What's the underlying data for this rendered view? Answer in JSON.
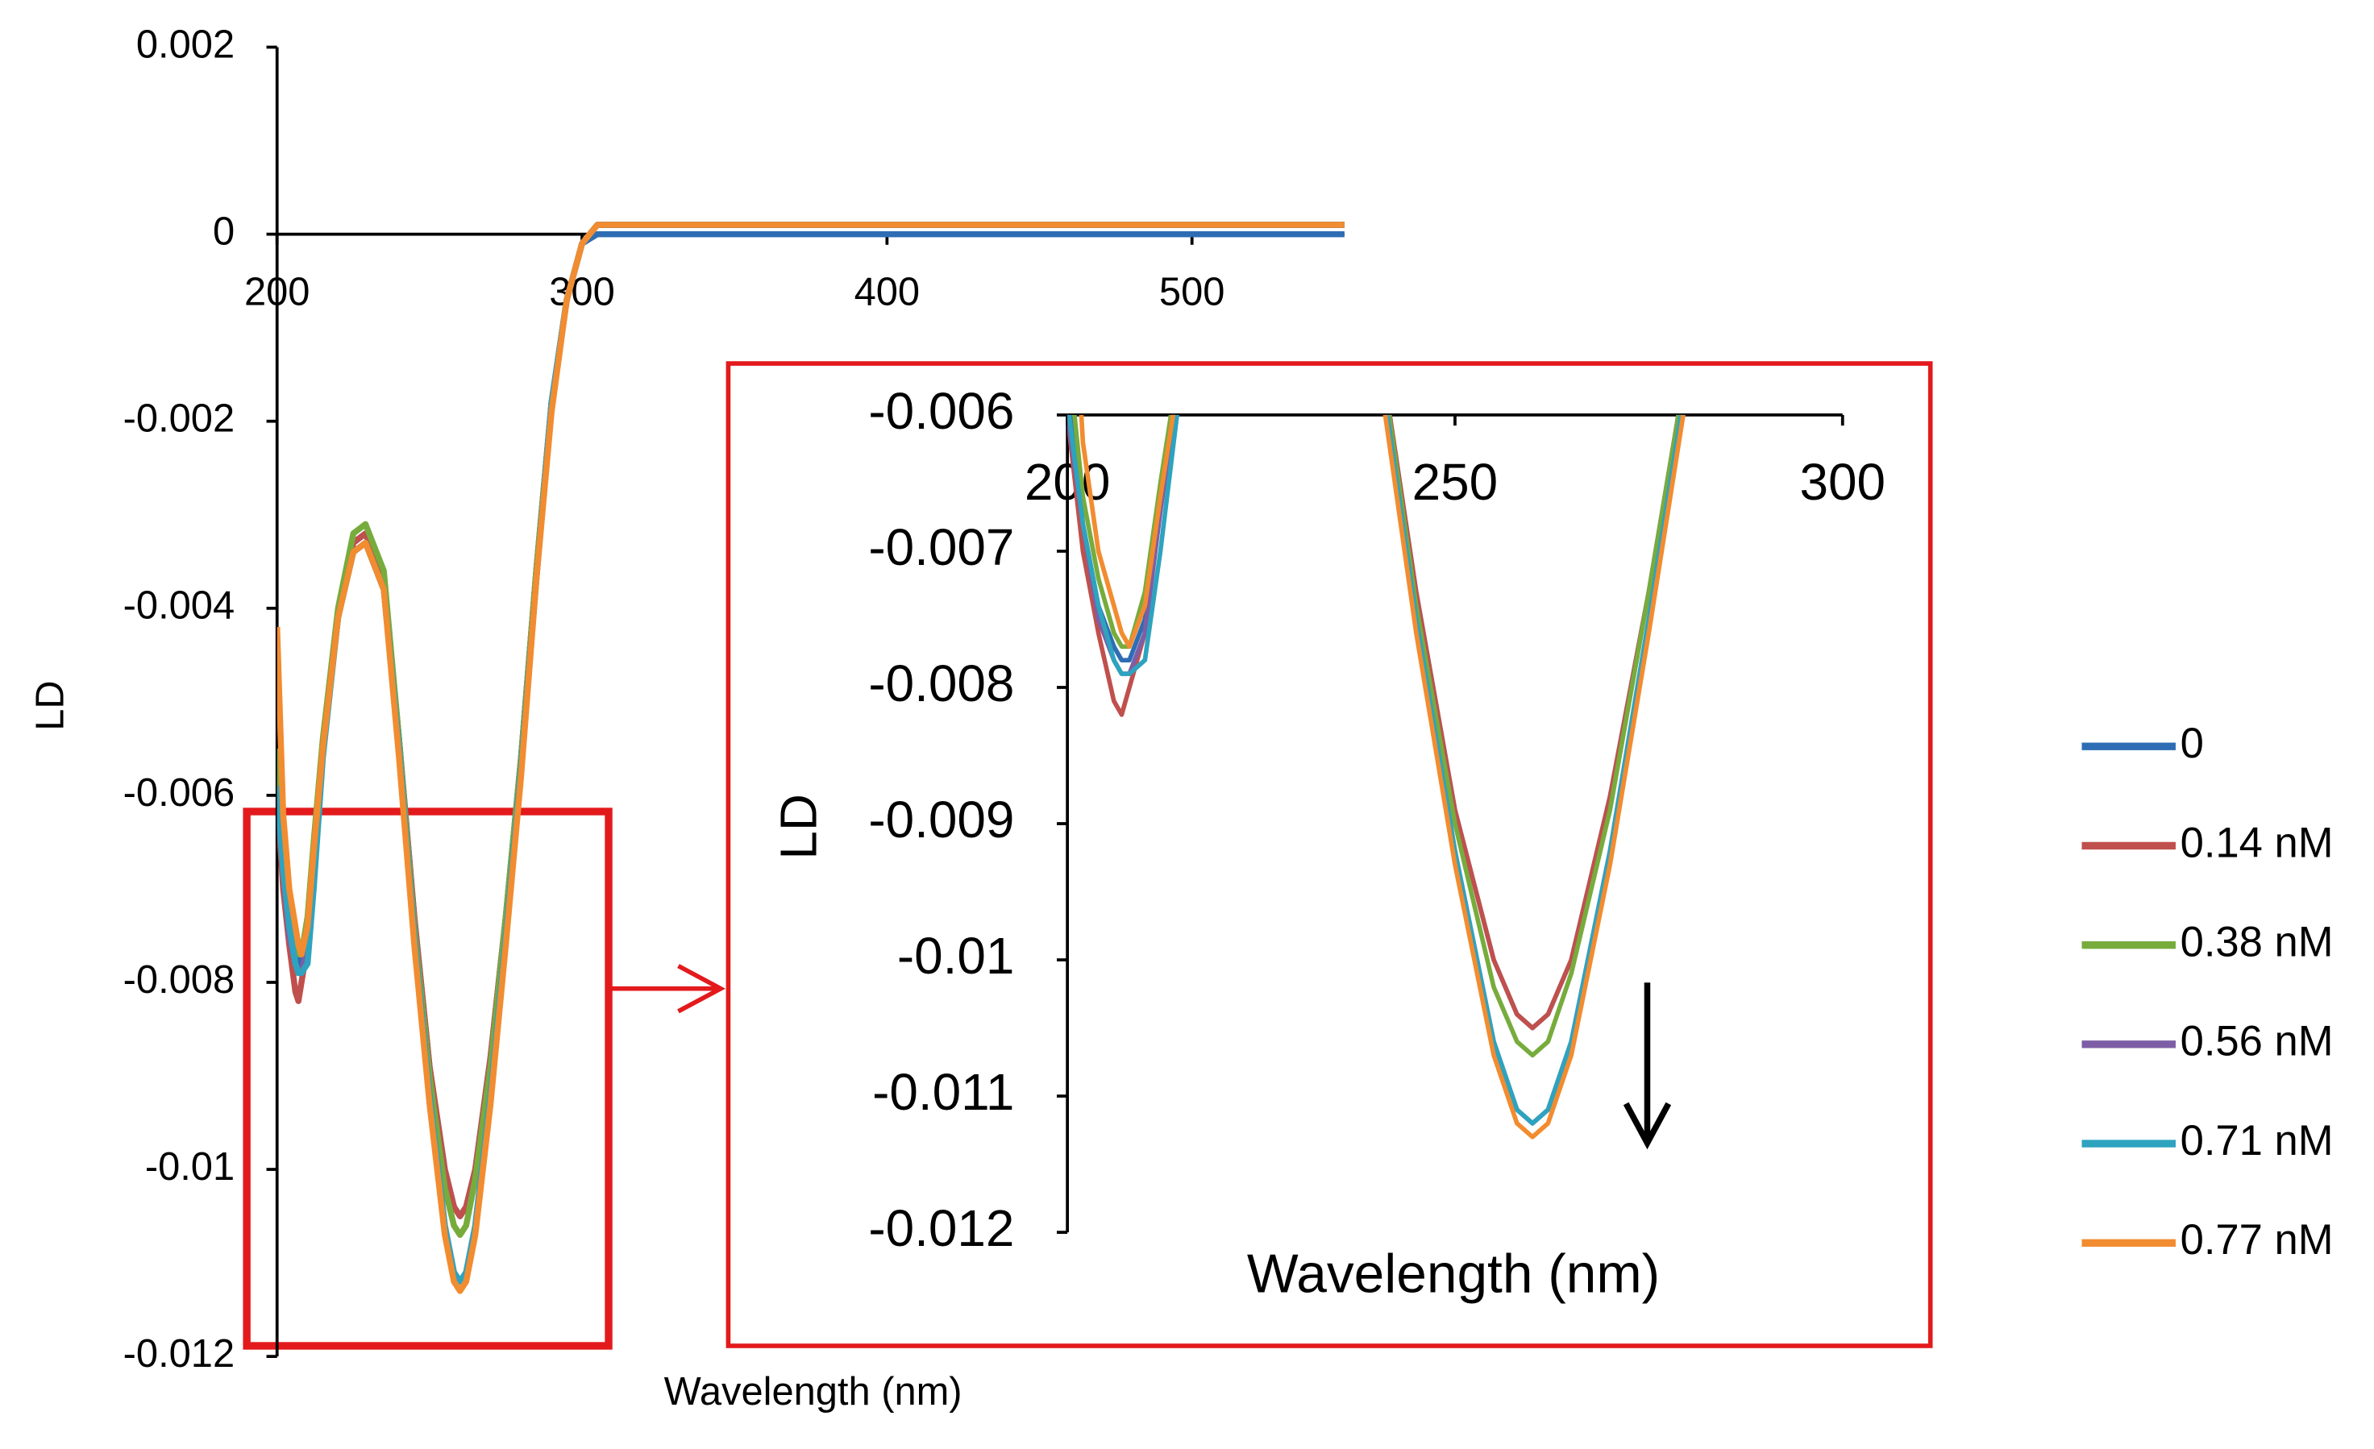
{
  "chart_data": [
    {
      "type": "line",
      "xlabel": "Wavelength  (nm)",
      "ylabel": "LD",
      "x": [
        200,
        202,
        204,
        206,
        207,
        208,
        210,
        212,
        215,
        220,
        225,
        229,
        235,
        240,
        245,
        250,
        255,
        258,
        260,
        262,
        265,
        270,
        275,
        280,
        285,
        290,
        295,
        300,
        305,
        310,
        350,
        400,
        450,
        500,
        550
      ],
      "xlim": [
        200,
        550
      ],
      "ylim": [
        -0.012,
        0.002
      ],
      "xticks": [
        200,
        300,
        400,
        500
      ],
      "yticks": [
        0.002,
        0,
        -0.002,
        -0.004,
        -0.006,
        -0.008,
        -0.01,
        -0.012
      ],
      "legend": "right",
      "series": [
        {
          "name": "0",
          "color": "#2e6db4",
          "values": [
            -0.0058,
            -0.0068,
            -0.0074,
            -0.0077,
            -0.0078,
            -0.0078,
            -0.0075,
            -0.0067,
            -0.0055,
            -0.0041,
            -0.0033,
            -0.0032,
            -0.0037,
            -0.0054,
            -0.0073,
            -0.0089,
            -0.01,
            -0.0104,
            -0.0105,
            -0.0104,
            -0.01,
            -0.0088,
            -0.0073,
            -0.0056,
            -0.0036,
            -0.0018,
            -0.0007,
            -0.0001,
            0.0,
            0.0,
            0.0,
            0.0,
            0.0,
            0.0,
            0.0
          ]
        },
        {
          "name": "0.14 nM",
          "color": "#c0504d",
          "values": [
            -0.006,
            -0.007,
            -0.0076,
            -0.0081,
            -0.0082,
            -0.008,
            -0.0076,
            -0.0067,
            -0.0055,
            -0.0041,
            -0.0033,
            -0.0032,
            -0.0037,
            -0.0054,
            -0.0073,
            -0.0089,
            -0.01,
            -0.0104,
            -0.0105,
            -0.0104,
            -0.01,
            -0.0088,
            -0.0073,
            -0.0056,
            -0.0036,
            -0.0018,
            -0.0007,
            -0.0001,
            0.0001,
            0.0001,
            0.0001,
            0.0001,
            0.0001,
            0.0001,
            0.0001
          ]
        },
        {
          "name": "0.38 nM",
          "color": "#77ac3d",
          "values": [
            -0.0055,
            -0.0066,
            -0.0072,
            -0.0076,
            -0.0077,
            -0.0077,
            -0.0073,
            -0.0065,
            -0.0054,
            -0.004,
            -0.0032,
            -0.0031,
            -0.0036,
            -0.0054,
            -0.0074,
            -0.009,
            -0.0102,
            -0.0106,
            -0.0107,
            -0.0106,
            -0.0101,
            -0.0089,
            -0.0073,
            -0.0056,
            -0.0036,
            -0.0018,
            -0.0007,
            -0.0001,
            0.0001,
            0.0001,
            0.0001,
            0.0001,
            0.0001,
            0.0001,
            0.0001
          ]
        },
        {
          "name": "0.56 nM",
          "color": "#7d5ea6",
          "values": [
            -0.006,
            -0.0068,
            -0.0075,
            -0.0078,
            -0.0079,
            -0.0079,
            -0.0076,
            -0.0067,
            -0.0055,
            -0.0041,
            -0.0034,
            -0.0033,
            -0.0038,
            -0.0055,
            -0.0075,
            -0.0092,
            -0.0106,
            -0.0111,
            -0.0112,
            -0.0111,
            -0.0106,
            -0.0092,
            -0.0075,
            -0.0057,
            -0.0037,
            -0.0018,
            -0.0007,
            -0.0001,
            0.0001,
            0.0001,
            0.0001,
            0.0001,
            0.0001,
            0.0001,
            0.0001
          ]
        },
        {
          "name": "0.71 nM",
          "color": "#2ea3bf",
          "values": [
            -0.0059,
            -0.0068,
            -0.0074,
            -0.0078,
            -0.0079,
            -0.0079,
            -0.0078,
            -0.007,
            -0.0056,
            -0.0041,
            -0.0034,
            -0.0033,
            -0.0038,
            -0.0055,
            -0.0075,
            -0.0092,
            -0.0106,
            -0.0111,
            -0.0112,
            -0.0111,
            -0.0106,
            -0.0092,
            -0.0075,
            -0.0057,
            -0.0037,
            -0.0018,
            -0.0007,
            -0.0001,
            0.0001,
            0.0001,
            0.0001,
            0.0001,
            0.0001,
            0.0001,
            0.0001
          ]
        },
        {
          "name": "0.77 nM",
          "color": "#f28c30",
          "values": [
            -0.0042,
            -0.0062,
            -0.007,
            -0.0074,
            -0.0076,
            -0.0077,
            -0.0074,
            -0.0066,
            -0.0055,
            -0.0041,
            -0.0034,
            -0.0033,
            -0.0038,
            -0.0056,
            -0.0076,
            -0.0093,
            -0.0107,
            -0.0112,
            -0.0113,
            -0.0112,
            -0.0107,
            -0.0093,
            -0.0076,
            -0.0058,
            -0.0037,
            -0.0019,
            -0.0007,
            -0.0001,
            0.0001,
            0.0001,
            0.0001,
            0.0001,
            0.0001,
            0.0001,
            0.0001
          ]
        }
      ]
    },
    {
      "type": "line",
      "xlabel": "Wavelength (nm)",
      "ylabel": "LD",
      "xlim": [
        200,
        300
      ],
      "ylim": [
        -0.012,
        -0.006
      ],
      "xticks": [
        200,
        250,
        300
      ],
      "yticks": [
        -0.006,
        -0.007,
        -0.008,
        -0.009,
        -0.01,
        -0.011,
        -0.012
      ]
    }
  ]
}
